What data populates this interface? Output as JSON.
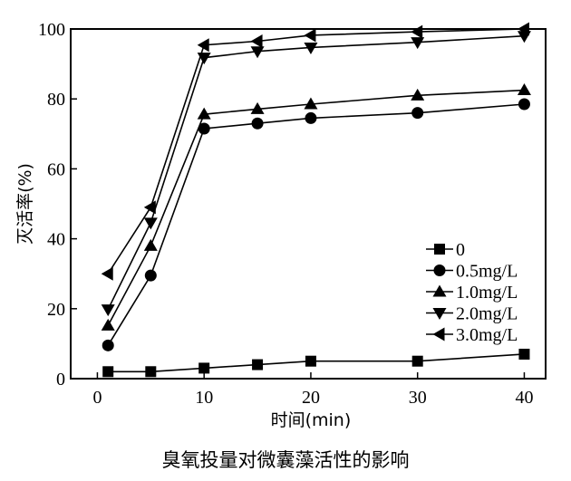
{
  "chart_data": {
    "type": "line",
    "title": "",
    "caption": "臭氧投量对微囊藻活性的影响",
    "xlabel": "时间(min)",
    "ylabel": "灭活率(%)",
    "xlim": [
      -2.5,
      42
    ],
    "ylim": [
      0,
      100
    ],
    "xticks": [
      0,
      10,
      20,
      30,
      40
    ],
    "yticks": [
      0,
      20,
      40,
      60,
      80,
      100
    ],
    "grid": false,
    "legend_position": "bottom-right",
    "x": [
      1,
      5,
      10,
      15,
      20,
      30,
      40
    ],
    "series": [
      {
        "name": "0",
        "marker": "square",
        "values": [
          2,
          2,
          3,
          4,
          5,
          5,
          7
        ]
      },
      {
        "name": "0.5mg/L",
        "marker": "circle",
        "values": [
          9.5,
          29.5,
          71.5,
          73,
          74.5,
          76,
          78.5
        ]
      },
      {
        "name": "1.0mg/L",
        "marker": "triangle-up",
        "values": [
          15.2,
          38,
          75.6,
          77.1,
          78.5,
          81,
          82.5
        ]
      },
      {
        "name": "2.0mg/L",
        "marker": "triangle-down",
        "values": [
          19.8,
          44.6,
          91.8,
          93.6,
          94.7,
          96.2,
          98
        ]
      },
      {
        "name": "3.0mg/L",
        "marker": "triangle-left",
        "values": [
          30,
          49,
          95.4,
          96.5,
          98.2,
          99.2,
          100
        ]
      }
    ]
  }
}
